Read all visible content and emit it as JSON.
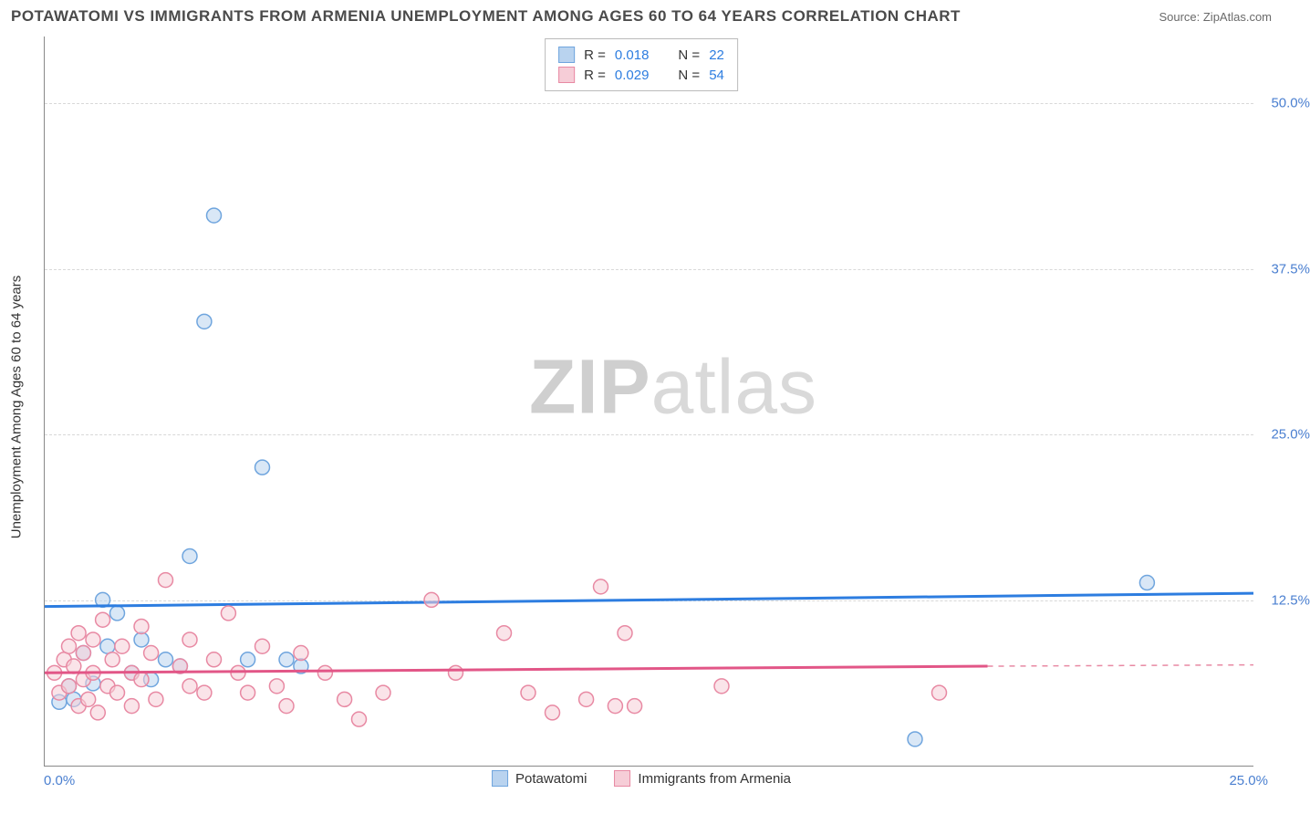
{
  "title": "POTAWATOMI VS IMMIGRANTS FROM ARMENIA UNEMPLOYMENT AMONG AGES 60 TO 64 YEARS CORRELATION CHART",
  "source": "Source: ZipAtlas.com",
  "watermark_bold": "ZIP",
  "watermark_light": "atlas",
  "chart": {
    "type": "scatter",
    "background_color": "#ffffff",
    "grid_color": "#d8d8d8",
    "axis_color": "#888888",
    "font_family": "Arial",
    "title_fontsize": 17,
    "label_fontsize": 15,
    "tick_fontsize": 15,
    "tick_color": "#4a7fd0",
    "xlim": [
      0,
      25
    ],
    "ylim": [
      0,
      55
    ],
    "x_origin_label": "0.0%",
    "x_max_label": "25.0%",
    "y_ticks": [
      12.5,
      25.0,
      37.5,
      50.0
    ],
    "y_tick_labels": [
      "12.5%",
      "25.0%",
      "37.5%",
      "50.0%"
    ],
    "y_axis_label": "Unemployment Among Ages 60 to 64 years",
    "marker_radius": 8,
    "marker_opacity": 0.55,
    "line_width": 3,
    "series": [
      {
        "name": "Potawatomi",
        "color_fill": "#b9d3ef",
        "color_stroke": "#6fa5de",
        "line_color": "#2d7de0",
        "r": 0.018,
        "n": 22,
        "reg_x0": 0,
        "reg_y0": 12.0,
        "reg_x1": 25,
        "reg_y1": 13.0,
        "dash_extend": false,
        "points": [
          [
            0.3,
            4.8
          ],
          [
            0.5,
            6.0
          ],
          [
            0.6,
            5.0
          ],
          [
            0.8,
            8.5
          ],
          [
            1.0,
            6.2
          ],
          [
            1.2,
            12.5
          ],
          [
            1.3,
            9.0
          ],
          [
            1.5,
            11.5
          ],
          [
            1.8,
            7.0
          ],
          [
            2.0,
            9.5
          ],
          [
            2.2,
            6.5
          ],
          [
            2.5,
            8.0
          ],
          [
            3.0,
            15.8
          ],
          [
            3.3,
            33.5
          ],
          [
            3.5,
            41.5
          ],
          [
            4.2,
            8.0
          ],
          [
            4.5,
            22.5
          ],
          [
            5.0,
            8.0
          ],
          [
            5.3,
            7.5
          ],
          [
            18.0,
            2.0
          ],
          [
            22.8,
            13.8
          ],
          [
            2.8,
            7.5
          ]
        ]
      },
      {
        "name": "Immigrants from Armenia",
        "color_fill": "#f6cdd7",
        "color_stroke": "#e889a3",
        "line_color": "#e25687",
        "r": 0.029,
        "n": 54,
        "reg_x0": 0,
        "reg_y0": 7.0,
        "reg_x1": 19.5,
        "reg_y1": 7.5,
        "dash_extend": true,
        "dash_x1": 25,
        "dash_y1": 7.6,
        "points": [
          [
            0.2,
            7.0
          ],
          [
            0.3,
            5.5
          ],
          [
            0.4,
            8.0
          ],
          [
            0.5,
            6.0
          ],
          [
            0.5,
            9.0
          ],
          [
            0.6,
            7.5
          ],
          [
            0.7,
            4.5
          ],
          [
            0.7,
            10.0
          ],
          [
            0.8,
            6.5
          ],
          [
            0.8,
            8.5
          ],
          [
            0.9,
            5.0
          ],
          [
            1.0,
            9.5
          ],
          [
            1.0,
            7.0
          ],
          [
            1.1,
            4.0
          ],
          [
            1.2,
            11.0
          ],
          [
            1.3,
            6.0
          ],
          [
            1.4,
            8.0
          ],
          [
            1.5,
            5.5
          ],
          [
            1.6,
            9.0
          ],
          [
            1.8,
            7.0
          ],
          [
            1.8,
            4.5
          ],
          [
            2.0,
            10.5
          ],
          [
            2.0,
            6.5
          ],
          [
            2.2,
            8.5
          ],
          [
            2.3,
            5.0
          ],
          [
            2.5,
            14.0
          ],
          [
            2.8,
            7.5
          ],
          [
            3.0,
            6.0
          ],
          [
            3.0,
            9.5
          ],
          [
            3.3,
            5.5
          ],
          [
            3.5,
            8.0
          ],
          [
            3.8,
            11.5
          ],
          [
            4.0,
            7.0
          ],
          [
            4.2,
            5.5
          ],
          [
            4.5,
            9.0
          ],
          [
            4.8,
            6.0
          ],
          [
            5.0,
            4.5
          ],
          [
            5.3,
            8.5
          ],
          [
            5.8,
            7.0
          ],
          [
            6.2,
            5.0
          ],
          [
            6.5,
            3.5
          ],
          [
            7.0,
            5.5
          ],
          [
            8.0,
            12.5
          ],
          [
            8.5,
            7.0
          ],
          [
            9.5,
            10.0
          ],
          [
            10.0,
            5.5
          ],
          [
            10.5,
            4.0
          ],
          [
            11.2,
            5.0
          ],
          [
            11.5,
            13.5
          ],
          [
            12.0,
            10.0
          ],
          [
            12.2,
            4.5
          ],
          [
            14.0,
            6.0
          ],
          [
            18.5,
            5.5
          ],
          [
            11.8,
            4.5
          ]
        ]
      }
    ]
  },
  "legend": {
    "r_label": "R",
    "n_label": "N",
    "equals": " = "
  }
}
